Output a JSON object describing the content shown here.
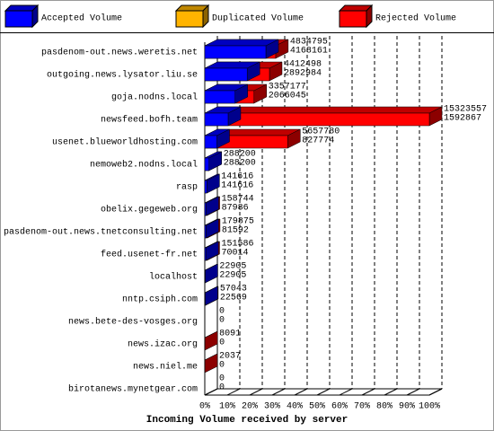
{
  "chart_data": {
    "type": "bar3d",
    "title": "Incoming Volume received by server",
    "categories": [
      "pasdenom-out.news.weretis.net",
      "outgoing.news.lysator.liu.se",
      "goja.nodns.local",
      "newsfeed.bofh.team",
      "usenet.blueworldhosting.com",
      "nemoweb2.nodns.local",
      "rasp",
      "obelix.gegeweb.org",
      "pasdenom-out.news.tnetconsulting.net",
      "feed.usenet-fr.net",
      "localhost",
      "nntp.csiph.com",
      "news.bete-des-vosges.org",
      "news.izac.org",
      "news.niel.me",
      "birotanews.mynetgear.com"
    ],
    "series": [
      {
        "name": "Accepted Volume",
        "color": "#0000ff",
        "values": [
          4168161,
          2892984,
          2066045,
          1592867,
          827774,
          288200,
          141616,
          87986,
          81592,
          70014,
          22905,
          22569,
          0,
          0,
          0,
          0
        ]
      },
      {
        "name": "Duplicated Volume",
        "color": "#ffb400",
        "values": [
          null,
          null,
          null,
          null,
          null,
          null,
          null,
          null,
          null,
          null,
          null,
          null,
          null,
          null,
          null,
          null
        ]
      },
      {
        "name": "Rejected Volume",
        "color": "#ff0000",
        "values": [
          4834795,
          4412498,
          3357177,
          15323557,
          5657780,
          288200,
          141616,
          158744,
          179875,
          151586,
          22905,
          57043,
          0,
          8091,
          2037,
          0
        ]
      }
    ],
    "xlim": [
      0,
      15323557
    ],
    "xticks": [
      {
        "value": 0,
        "label": "0%"
      },
      {
        "value": 1532355.7,
        "label": "10%"
      },
      {
        "value": 3064711.4,
        "label": "20%"
      },
      {
        "value": 4597067.1,
        "label": "30%"
      },
      {
        "value": 6129422.8,
        "label": "40%"
      },
      {
        "value": 7661778.5,
        "label": "50%"
      },
      {
        "value": 9194134.2,
        "label": "60%"
      },
      {
        "value": 10726489.9,
        "label": "70%"
      },
      {
        "value": 12258845.6,
        "label": "80%"
      },
      {
        "value": 13791201.3,
        "label": "90%"
      },
      {
        "value": 15323557,
        "label": "100%"
      }
    ],
    "grid": true
  }
}
